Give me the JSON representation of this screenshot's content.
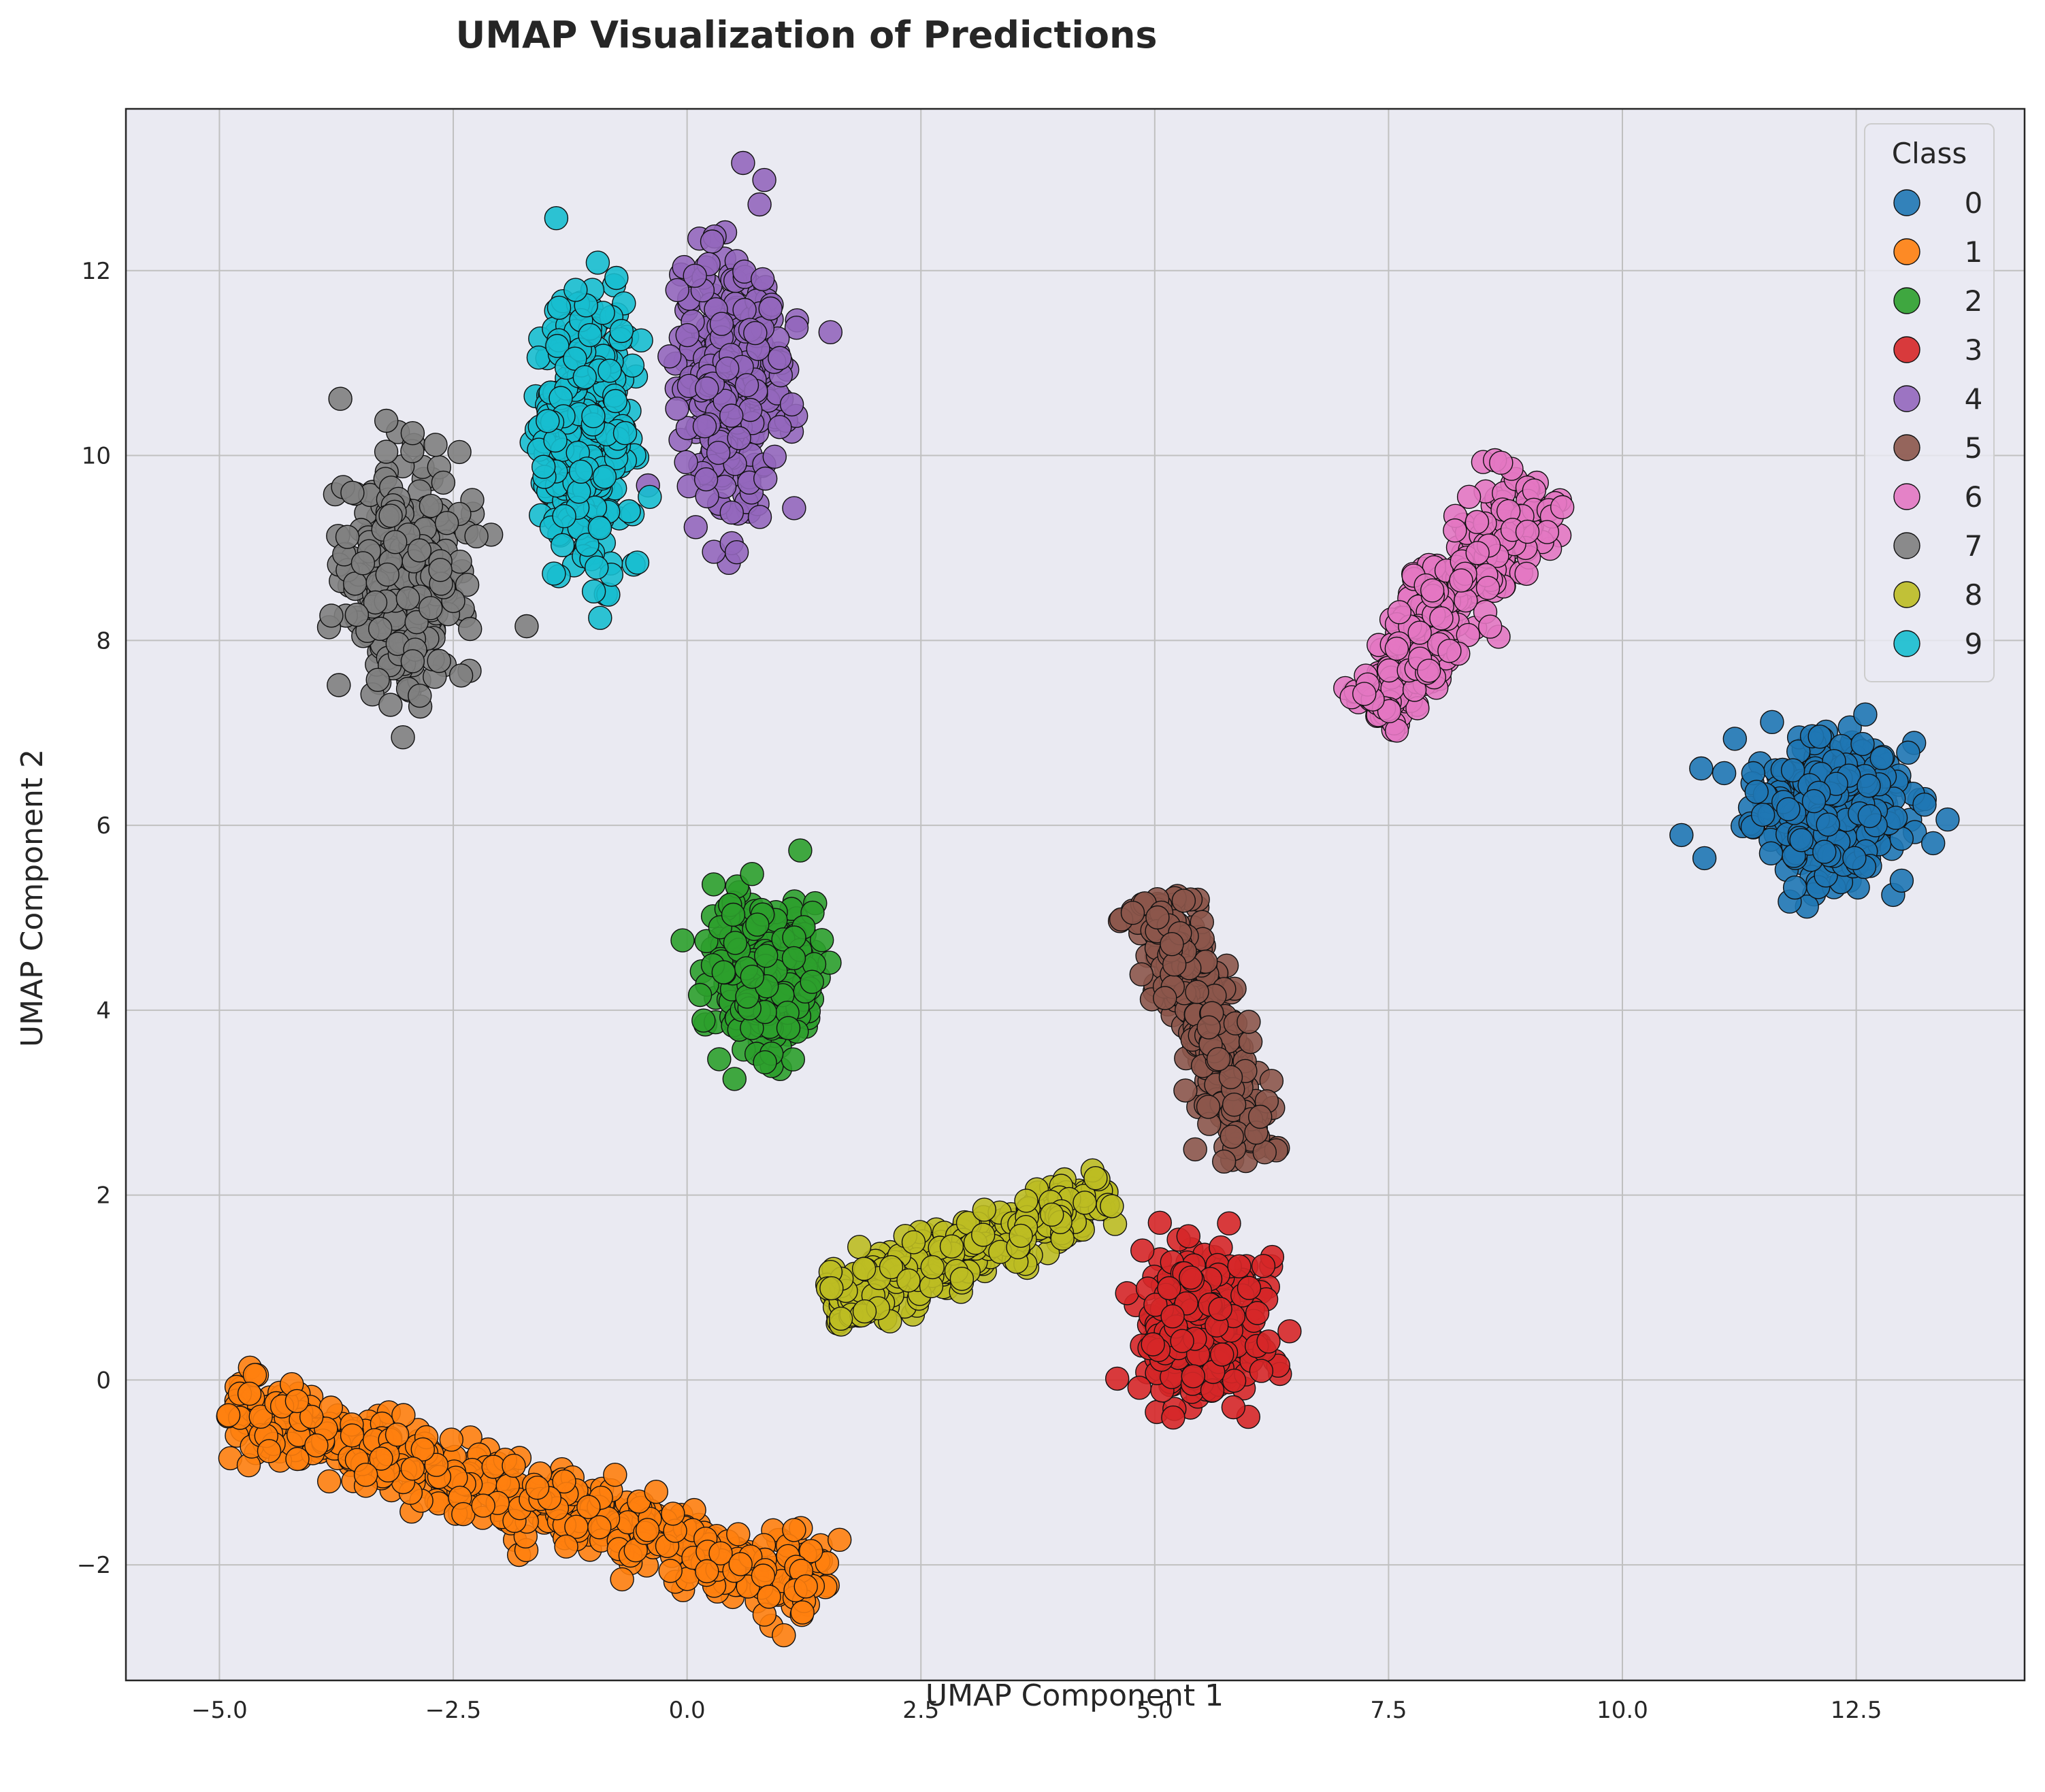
{
  "chart_data": {
    "type": "scatter",
    "title": "UMAP Visualization of Predictions",
    "xlabel": "UMAP Component 1",
    "ylabel": "UMAP Component 2",
    "xlim": [
      -6.0,
      14.3
    ],
    "ylim": [
      -3.25,
      13.75
    ],
    "xticks": [
      -5.0,
      -2.5,
      0.0,
      2.5,
      5.0,
      7.5,
      10.0,
      12.5
    ],
    "xtick_labels": [
      "−5.0",
      "−2.5",
      "0.0",
      "2.5",
      "5.0",
      "7.5",
      "10.0",
      "12.5"
    ],
    "yticks": [
      -2,
      0,
      2,
      4,
      6,
      8,
      10,
      12
    ],
    "ytick_labels": [
      "−2",
      "0",
      "2",
      "4",
      "6",
      "8",
      "10",
      "12"
    ],
    "grid": true,
    "legend": {
      "title": "Class",
      "placement": "top-right"
    },
    "series": [
      {
        "name": "0",
        "color": "#1f77b4",
        "clusters": [
          {
            "center": [
              12.2,
              6.2
            ],
            "sx": 0.65,
            "sy": 0.6,
            "count": 420
          }
        ]
      },
      {
        "name": "1",
        "color": "#ff7f0e",
        "clusters": [
          {
            "line": [
              [
                -4.9,
                -0.3
              ],
              [
                1.5,
                -2.25
              ]
            ],
            "width": 0.45,
            "count": 520
          }
        ]
      },
      {
        "name": "2",
        "color": "#2ca02c",
        "clusters": [
          {
            "center": [
              0.85,
              4.4
            ],
            "sx": 0.45,
            "sy": 0.65,
            "count": 340
          }
        ]
      },
      {
        "name": "3",
        "color": "#d62728",
        "clusters": [
          {
            "center": [
              5.5,
              0.5
            ],
            "sx": 0.5,
            "sy": 0.7,
            "count": 380
          }
        ]
      },
      {
        "name": "4",
        "color": "#9467bd",
        "clusters": [
          {
            "center": [
              0.5,
              10.8
            ],
            "sx": 0.45,
            "sy": 1.1,
            "count": 340
          }
        ]
      },
      {
        "name": "5",
        "color": "#8c564b",
        "clusters": [
          {
            "line": [
              [
                5.0,
                5.2
              ],
              [
                6.1,
                2.4
              ]
            ],
            "width": 0.38,
            "count": 300
          }
        ]
      },
      {
        "name": "6",
        "color": "#e377c2",
        "clusters": [
          {
            "line": [
              [
                7.3,
                7.2
              ],
              [
                9.1,
                9.7
              ]
            ],
            "width": 0.45,
            "count": 330
          }
        ]
      },
      {
        "name": "7",
        "color": "#7f7f7f",
        "clusters": [
          {
            "center": [
              -3.0,
              8.7
            ],
            "sx": 0.5,
            "sy": 1.0,
            "count": 330
          }
        ]
      },
      {
        "name": "8",
        "color": "#bcbd22",
        "clusters": [
          {
            "line": [
              [
                1.5,
                0.8
              ],
              [
                4.5,
                2.0
              ]
            ],
            "width": 0.35,
            "count": 320
          }
        ]
      },
      {
        "name": "9",
        "color": "#17becf",
        "clusters": [
          {
            "center": [
              -1.1,
              10.2
            ],
            "sx": 0.4,
            "sy": 1.3,
            "count": 330
          }
        ]
      }
    ]
  }
}
